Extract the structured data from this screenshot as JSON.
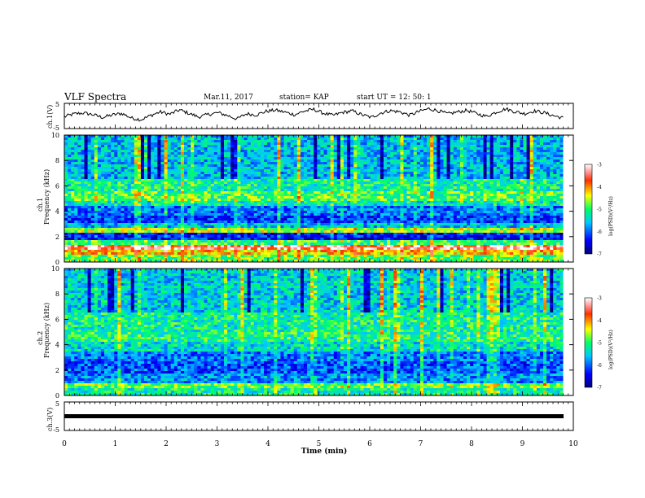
{
  "header": {
    "title": "VLF Spectra",
    "date": "Mar.11, 2017",
    "station": "station= KAP",
    "start": "start  UT =   12: 50: 1"
  },
  "chart_data": {
    "type": "heatmap",
    "xlabel": "Time  (min)",
    "xlim": [
      0,
      10
    ],
    "x_ticks": [
      "0",
      "1",
      "2",
      "3",
      "4",
      "5",
      "6",
      "7",
      "8",
      "9",
      "10"
    ],
    "panels": [
      {
        "kind": "line",
        "ylabel": "ch.1(V)",
        "ylim": [
          -5,
          5
        ],
        "y_ticks": [
          "5",
          "-5"
        ],
        "values_approx": [
          -0.3,
          0.8,
          1.2,
          0.5,
          -0.6,
          0.4,
          1.0,
          -0.8,
          -1.5,
          0.2,
          1.6,
          0.7,
          2.4,
          1.0,
          -0.4,
          0.6,
          1.3,
          0.2,
          -1.2,
          0.9,
          0.4,
          1.8,
          2.3,
          1.5,
          0.5,
          1.9,
          2.6,
          1.1,
          0.2,
          1.4,
          2.0,
          0.5,
          -0.6,
          1.2,
          2.1,
          1.6,
          0.3,
          1.8,
          2.9,
          2.0,
          0.8,
          1.6,
          2.2,
          0.9,
          -0.2,
          1.5,
          2.8,
          1.7,
          0.9,
          2.0,
          1.3,
          0.1,
          -0.8
        ]
      },
      {
        "kind": "spectrogram",
        "ylabel_top": "ch.1",
        "ylabel": "Frequency (kHz)",
        "ylim": [
          0,
          10
        ],
        "y_ticks": [
          "0",
          "2",
          "4",
          "6",
          "8",
          "10"
        ],
        "colorbar": {
          "label": "log(PSD)(V²/Hz)",
          "ticks": [
            "-3",
            "-4",
            "-5",
            "-6",
            "-7"
          ],
          "range": [
            -7,
            -3
          ]
        },
        "bands": [
          [
            0,
            0.5,
            -4.8
          ],
          [
            0.5,
            1.0,
            -4.2
          ],
          [
            1.0,
            1.4,
            -3.4
          ],
          [
            1.4,
            1.8,
            -5.0
          ],
          [
            1.8,
            2.3,
            -6.4
          ],
          [
            2.3,
            2.6,
            -4.6
          ],
          [
            2.6,
            3.0,
            -5.6
          ],
          [
            3.0,
            3.6,
            -6.2
          ],
          [
            3.6,
            4.4,
            -5.9
          ],
          [
            4.4,
            4.8,
            -5.3
          ],
          [
            4.8,
            5.6,
            -4.9
          ],
          [
            5.6,
            6.5,
            -5.2
          ],
          [
            6.5,
            10.0,
            -5.6
          ]
        ]
      },
      {
        "kind": "spectrogram",
        "ylabel_top": "ch.2",
        "ylabel": "Frequency (kHz)",
        "ylim": [
          0,
          10
        ],
        "y_ticks": [
          "0",
          "2",
          "4",
          "6",
          "8",
          "10"
        ],
        "colorbar": {
          "label": "log(PSD)(V²/Hz)",
          "ticks": [
            "-3",
            "-4",
            "-5",
            "-6",
            "-7"
          ],
          "range": [
            -7,
            -3
          ]
        },
        "bands": [
          [
            0,
            0.5,
            -5.2
          ],
          [
            0.5,
            1.0,
            -4.8
          ],
          [
            1.0,
            1.8,
            -5.8
          ],
          [
            1.8,
            2.6,
            -6.1
          ],
          [
            2.6,
            3.4,
            -5.9
          ],
          [
            3.4,
            4.2,
            -5.4
          ],
          [
            4.2,
            5.0,
            -5.1
          ],
          [
            5.0,
            6.5,
            -5.2
          ],
          [
            6.5,
            10.0,
            -5.5
          ]
        ]
      },
      {
        "kind": "line",
        "ylabel": "ch.3(V)",
        "ylim": [
          -5,
          5
        ],
        "y_ticks": [
          "5",
          "-5"
        ],
        "values_approx": [
          0.0,
          0.0
        ]
      }
    ]
  }
}
